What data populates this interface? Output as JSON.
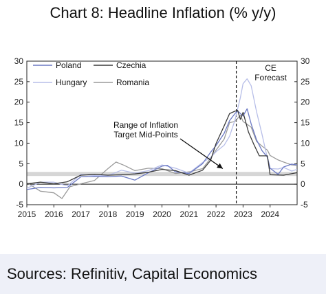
{
  "title": "Chart 8: Headline Inflation (% y/y)",
  "source": "Sources: Refinitiv, Capital Economics",
  "colors": {
    "poland": "#6b79c4",
    "czechia": "#3a3a3a",
    "hungary": "#b7bee8",
    "romania": "#9a9a9a",
    "band": "#d6d6d6"
  },
  "chart_data": {
    "type": "line",
    "title": "Chart 8: Headline Inflation (% y/y)",
    "ylim": [
      -5,
      30
    ],
    "xlim": [
      2015,
      2025
    ],
    "yticks": [
      -5,
      0,
      5,
      10,
      15,
      20,
      25,
      30
    ],
    "ytick_labels": [
      "-5",
      "0",
      "5",
      "10",
      "15",
      "20",
      "25",
      "30"
    ],
    "xticks": [
      "2015",
      "2016",
      "2017",
      "2018",
      "2019",
      "2020",
      "2021",
      "2022",
      "2023",
      "2024"
    ],
    "dual_y_axis": true,
    "legend_position": "top-left",
    "series": [
      {
        "name": "Poland",
        "x": [
          2015.0,
          2015.5,
          2016.0,
          2016.5,
          2017.0,
          2017.5,
          2018.0,
          2018.5,
          2019.0,
          2019.5,
          2020.0,
          2020.2,
          2020.5,
          2021.0,
          2021.5,
          2021.8,
          2022.0,
          2022.3,
          2022.5,
          2022.7,
          2022.8,
          2023.0,
          2023.15,
          2023.3,
          2023.5,
          2023.7,
          2023.9,
          2024.0,
          2024.3,
          2024.5,
          2024.8,
          2025.0
        ],
        "y": [
          -1.3,
          -0.8,
          -0.9,
          -0.8,
          1.8,
          1.9,
          1.8,
          2.0,
          1.0,
          2.8,
          4.4,
          4.6,
          3.0,
          2.6,
          5.0,
          7.8,
          9.4,
          12.4,
          15.5,
          17.2,
          17.9,
          16.6,
          18.4,
          14.7,
          10.8,
          8.2,
          6.6,
          3.9,
          2.4,
          4.2,
          4.9,
          4.7
        ]
      },
      {
        "name": "Czechia",
        "x": [
          2015.0,
          2015.5,
          2016.0,
          2016.5,
          2017.0,
          2017.5,
          2018.0,
          2018.5,
          2019.0,
          2019.5,
          2020.0,
          2020.5,
          2021.0,
          2021.5,
          2021.8,
          2022.0,
          2022.3,
          2022.5,
          2022.7,
          2022.8,
          2022.9,
          2023.0,
          2023.2,
          2023.4,
          2023.6,
          2023.9,
          2024.0,
          2024.5,
          2025.0
        ],
        "y": [
          0.1,
          0.5,
          0.1,
          0.6,
          2.2,
          2.4,
          2.2,
          2.3,
          2.5,
          2.9,
          3.6,
          3.3,
          2.2,
          3.4,
          5.8,
          9.9,
          14.2,
          17.2,
          17.8,
          18.0,
          15.8,
          17.5,
          12.7,
          9.7,
          6.9,
          6.9,
          2.3,
          2.2,
          2.8
        ]
      },
      {
        "name": "Hungary",
        "x": [
          2015.0,
          2015.5,
          2016.0,
          2016.5,
          2017.0,
          2017.5,
          2018.0,
          2018.5,
          2019.0,
          2019.5,
          2020.0,
          2020.5,
          2021.0,
          2021.5,
          2021.8,
          2022.0,
          2022.3,
          2022.5,
          2022.7,
          2022.9,
          2023.0,
          2023.15,
          2023.3,
          2023.5,
          2023.7,
          2023.9,
          2024.0,
          2024.3,
          2024.5,
          2024.8,
          2025.0
        ],
        "y": [
          -1.0,
          0.5,
          0.5,
          -0.4,
          2.4,
          2.1,
          2.1,
          3.4,
          2.7,
          3.3,
          4.7,
          3.9,
          2.7,
          5.3,
          6.5,
          7.9,
          9.5,
          11.7,
          15.6,
          21.1,
          24.5,
          25.7,
          24.0,
          17.6,
          12.2,
          6.3,
          3.8,
          3.7,
          4.1,
          3.2,
          3.6
        ]
      },
      {
        "name": "Romania",
        "x": [
          2015.0,
          2015.5,
          2016.0,
          2016.3,
          2016.6,
          2017.0,
          2017.5,
          2018.0,
          2018.3,
          2018.6,
          2019.0,
          2019.5,
          2020.0,
          2020.5,
          2021.0,
          2021.5,
          2021.8,
          2022.0,
          2022.3,
          2022.5,
          2022.7,
          2022.9,
          2023.0,
          2023.3,
          2023.5,
          2023.7,
          2023.9,
          2024.0,
          2024.3,
          2024.5,
          2024.8,
          2025.0
        ],
        "y": [
          0.4,
          -1.7,
          -2.1,
          -3.5,
          -0.6,
          0.1,
          0.9,
          3.8,
          5.4,
          4.6,
          3.3,
          3.9,
          3.8,
          2.6,
          3.0,
          3.8,
          6.3,
          8.3,
          11.0,
          15.0,
          15.3,
          16.8,
          15.3,
          13.9,
          10.4,
          9.3,
          8.3,
          7.0,
          5.9,
          5.4,
          4.7,
          4.6
        ]
      }
    ],
    "band": {
      "label": "Range of Inflation Target Mid-Points",
      "from": 2.0,
      "to": 3.0
    },
    "forecast_line": {
      "x": 2022.75,
      "label_line1": "CE",
      "label_line2": "Forecast"
    },
    "annotation": {
      "line1": "Range of Inflation",
      "line2": "Target Mid-Points",
      "arrow_to": [
        2022.25,
        3.8
      ]
    }
  }
}
